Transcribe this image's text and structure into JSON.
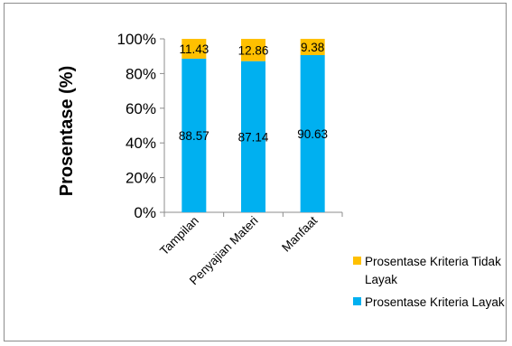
{
  "chart_data": {
    "type": "bar",
    "stacked": true,
    "percent_stacked": true,
    "categories": [
      "Tampilan",
      "Penyajian Materi",
      "Manfaat"
    ],
    "series": [
      {
        "name": "Prosentase Kriteria Layak",
        "values": [
          88.57,
          87.14,
          90.63
        ],
        "color": "#00b0f0"
      },
      {
        "name": "Prosentase Kriteria Tidak Layak",
        "values": [
          11.43,
          12.86,
          9.38
        ],
        "color": "#ffc000"
      }
    ],
    "data_labels": {
      "series_0": [
        "88.57",
        "87.14",
        "90.63"
      ],
      "series_1": [
        "11.43",
        "12.86",
        "9.38"
      ]
    },
    "ylabel": "Prosentase (%)",
    "xlabel": "",
    "title": "",
    "ylim": [
      0,
      100
    ],
    "yticks": [
      "0%",
      "20%",
      "40%",
      "60%",
      "80%",
      "100%"
    ],
    "legend_position": "right-bottom",
    "legend_order": [
      1,
      0
    ],
    "grid": false
  }
}
